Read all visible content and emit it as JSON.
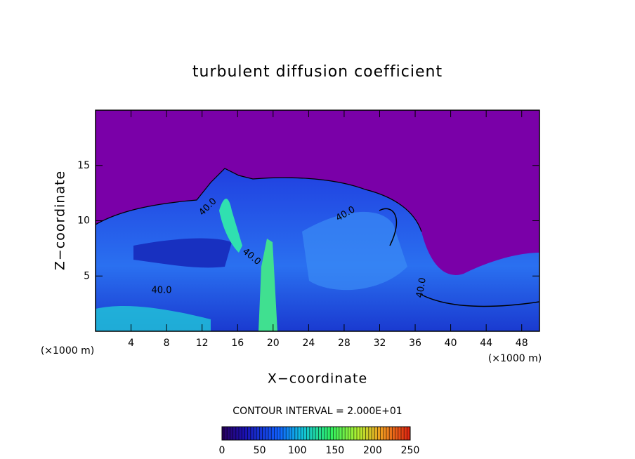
{
  "chart_data": {
    "type": "contour",
    "title": "turbulent diffusion coefficient",
    "xlabel": "X−coordinate",
    "ylabel": "Z−coordinate",
    "x_unit": "(×1000 m)",
    "xlim": [
      0,
      50
    ],
    "xticks": [
      4,
      8,
      12,
      16,
      20,
      24,
      28,
      32,
      36,
      40,
      44,
      48
    ],
    "ylim": [
      0,
      20
    ],
    "yticks": [
      5,
      10,
      15
    ],
    "contour_labels": [
      "40.0",
      "40.0",
      "40.0",
      "40.0",
      "40.0"
    ],
    "contour_interval_label": "CONTOUR INTERVAL = 2.000E+01",
    "colorbar": {
      "clim": [
        0,
        250
      ],
      "ticks": [
        0,
        50,
        100,
        150,
        200,
        250
      ]
    }
  }
}
